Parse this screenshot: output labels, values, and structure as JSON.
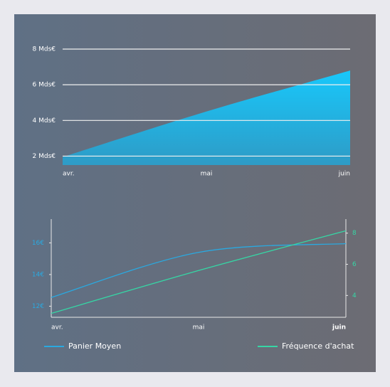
{
  "chart_data": [
    {
      "type": "area",
      "categories": [
        "avr.",
        "mai",
        "juin"
      ],
      "values": [
        1.95,
        4.5,
        6.8
      ],
      "color": "#1ec8f8",
      "ylim": [
        1.5,
        8
      ],
      "yticks": [
        {
          "value": 2,
          "label": "2 Mds€"
        },
        {
          "value": 4,
          "label": "4 Mds€"
        },
        {
          "value": 6,
          "label": "6 Mds€"
        },
        {
          "value": 8,
          "label": "8 Mds€"
        }
      ],
      "grid": true
    },
    {
      "type": "line",
      "categories": [
        "avr.",
        "mai",
        "juin"
      ],
      "series": [
        {
          "name": "Panier Moyen",
          "color": "#2aa9e0",
          "values": [
            12.55,
            15.4,
            15.95
          ]
        },
        {
          "name": "Fréquence d'achat",
          "color": "#36d6a5",
          "values": [
            2.85,
            5.6,
            8.15
          ],
          "axis": "y2"
        }
      ],
      "ylim": [
        11.3,
        17.5
      ],
      "yticks": [
        {
          "value": 12,
          "label": "12€"
        },
        {
          "value": 14,
          "label": "14€"
        },
        {
          "value": 16,
          "label": "16€"
        }
      ],
      "y2lim": [
        2.6,
        8.9
      ],
      "y2ticks": [
        4,
        6,
        8
      ],
      "grid": false
    }
  ]
}
